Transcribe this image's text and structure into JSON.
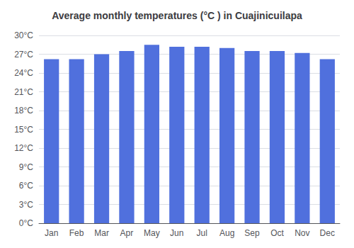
{
  "chart_data": {
    "type": "bar",
    "title": "Average monthly temperatures (°C ) in Cuajinicuilapa",
    "categories": [
      "Jan",
      "Feb",
      "Mar",
      "Apr",
      "May",
      "Jun",
      "Jul",
      "Aug",
      "Sep",
      "Oct",
      "Nov",
      "Dec"
    ],
    "values": [
      26.2,
      26.2,
      27.0,
      27.5,
      28.5,
      28.2,
      28.2,
      28.0,
      27.5,
      27.5,
      27.2,
      26.2
    ],
    "ylim": [
      0,
      30
    ],
    "yticks": [
      {
        "value": 0,
        "label": "0°C"
      },
      {
        "value": 3,
        "label": "3°C"
      },
      {
        "value": 6,
        "label": "6°C"
      },
      {
        "value": 9,
        "label": "9°C"
      },
      {
        "value": 12,
        "label": "12°C"
      },
      {
        "value": 15,
        "label": "15°C"
      },
      {
        "value": 18,
        "label": "18°C"
      },
      {
        "value": 21,
        "label": "21°C"
      },
      {
        "value": 24,
        "label": "24°C"
      },
      {
        "value": 27,
        "label": "27°C"
      },
      {
        "value": 30,
        "label": "30°C"
      }
    ],
    "grid": true
  }
}
